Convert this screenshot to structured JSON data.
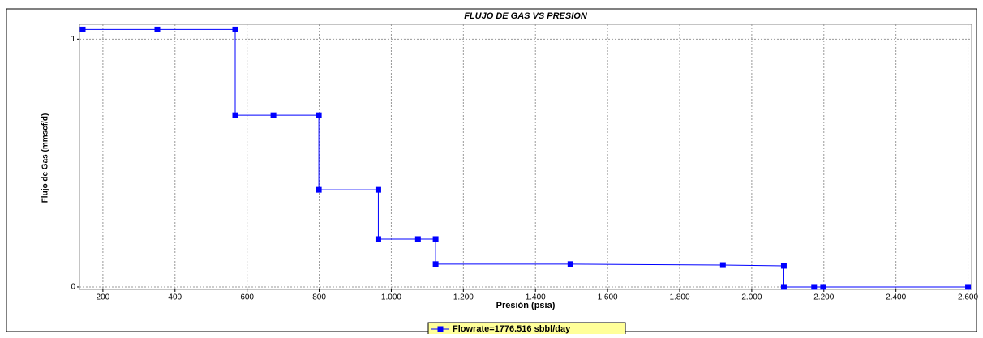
{
  "chart_data": {
    "type": "line",
    "title": "FLUJO DE GAS VS PRESION",
    "xlabel": "Presión (psia)",
    "ylabel": "Flujo de Gas (mmscf/d)",
    "x": [
      144,
      351,
      567,
      567,
      673,
      799,
      799,
      964,
      964,
      1074,
      1123,
      1123,
      1497,
      1920,
      2089,
      2089,
      2173,
      2198,
      2600
    ],
    "series": [
      {
        "name": "Flowrate=1776.516 sbbl/day",
        "color": "#0000ff",
        "values": [
          1.039,
          1.039,
          1.039,
          0.693,
          0.693,
          0.693,
          0.392,
          0.392,
          0.193,
          0.193,
          0.193,
          0.092,
          0.092,
          0.088,
          0.085,
          0,
          0,
          0,
          0
        ]
      }
    ],
    "xlim": [
      135,
      2610
    ],
    "ylim": [
      -0.01,
      1.06
    ],
    "xticks": [
      200,
      400,
      600,
      800,
      {
        "value": 1000,
        "label": "1.000"
      },
      {
        "value": 1200,
        "label": "1.200"
      },
      {
        "value": 1400,
        "label": "1.400"
      },
      {
        "value": 1600,
        "label": "1.600"
      },
      {
        "value": 1800,
        "label": "1.800"
      },
      {
        "value": 2000,
        "label": "2.000"
      },
      {
        "value": 2200,
        "label": "2.200"
      },
      {
        "value": 2400,
        "label": "2.400"
      },
      {
        "value": 2600,
        "label": "2.600"
      }
    ],
    "yticks": [
      0,
      1
    ],
    "grid": true,
    "legend": "bottom"
  }
}
